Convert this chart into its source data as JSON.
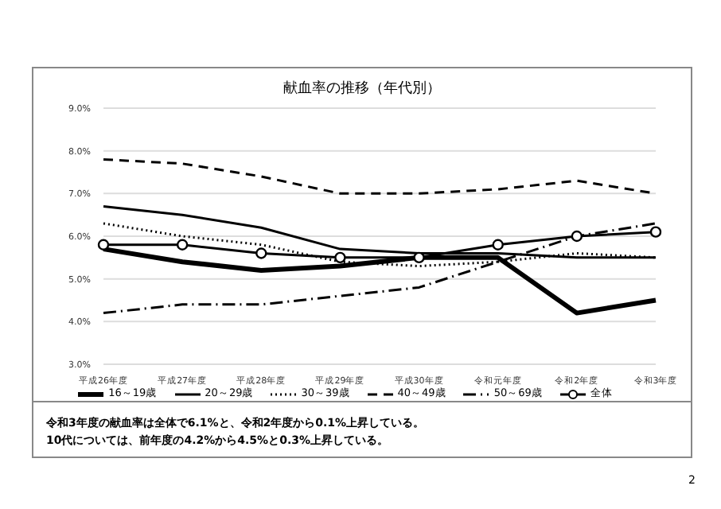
{
  "chart_data": {
    "type": "line",
    "title": "献血率の推移（年代別）",
    "categories": [
      "平成26年度",
      "平成27年度",
      "平成28年度",
      "平成29年度",
      "平成30年度",
      "令和元年度",
      "令和2年度",
      "令和3年度"
    ],
    "series": [
      {
        "name": "16～19歳",
        "color": "#000000",
        "line_style": "solid",
        "values": [
          5.7,
          5.4,
          5.2,
          5.3,
          5.5,
          5.5,
          4.2,
          4.5
        ]
      },
      {
        "name": "20～29歳",
        "color": "#000000",
        "line_style": "solid",
        "values": [
          6.7,
          6.5,
          6.2,
          5.7,
          5.6,
          5.6,
          5.5,
          5.5
        ]
      },
      {
        "name": "30～39歳",
        "color": "#000000",
        "line_style": "dotted",
        "values": [
          6.3,
          6.0,
          5.8,
          5.4,
          5.3,
          5.4,
          5.6,
          5.5
        ]
      },
      {
        "name": "40～49歳",
        "color": "#000000",
        "line_style": "dashed",
        "values": [
          7.8,
          7.7,
          7.4,
          7.0,
          7.0,
          7.1,
          7.3,
          7.0
        ]
      },
      {
        "name": "50～69歳",
        "color": "#000000",
        "line_style": "dashdot",
        "values": [
          4.2,
          4.4,
          4.4,
          4.6,
          4.8,
          5.4,
          6.0,
          6.3
        ]
      },
      {
        "name": "全体",
        "color": "#000000",
        "line_style": "solid",
        "marker": "circle",
        "values": [
          5.8,
          5.8,
          5.6,
          5.5,
          5.5,
          5.8,
          6.0,
          6.1
        ]
      }
    ],
    "ylim": [
      3,
      9
    ],
    "yticks": [
      {
        "value": 3,
        "label": "3.0%"
      },
      {
        "value": 4,
        "label": "4.0%"
      },
      {
        "value": 5,
        "label": "5.0%"
      },
      {
        "value": 6,
        "label": "6.0%"
      },
      {
        "value": 7,
        "label": "7.0%"
      },
      {
        "value": 8,
        "label": "8.0%"
      },
      {
        "value": 9,
        "label": "9.0%"
      }
    ],
    "grid": "y",
    "legend": "bottom",
    "marker": "none",
    "annotations": [
      "令和3年度の献血率は全体で6.1%と、令和2年度から0.1%上昇している。",
      "10代については、前年度の4.2%から4.5%と0.3%上昇している。",
      "2"
    ]
  }
}
